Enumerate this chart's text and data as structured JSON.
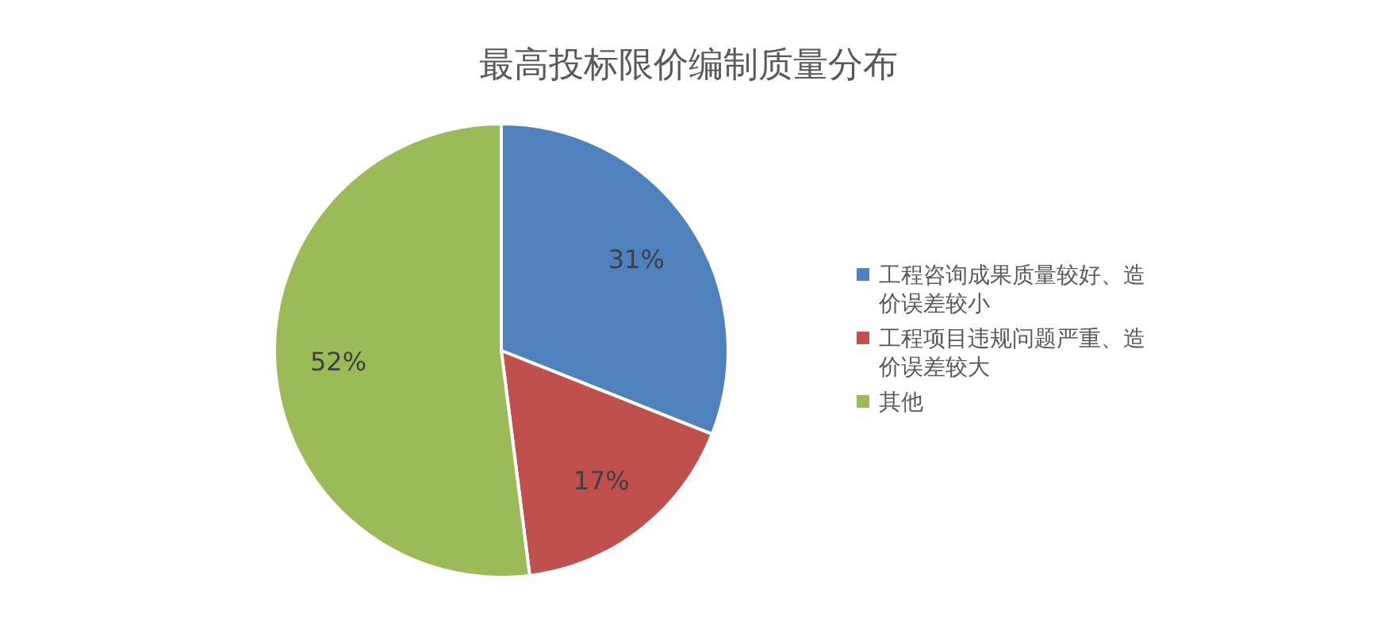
{
  "chart_data": {
    "type": "pie",
    "title": "最高投标限价编制质量分布",
    "categories": [
      "工程咨询成果质量较好、造价误差较小",
      "工程项目违规问题严重、造价误差较大",
      "其他"
    ],
    "values": [
      31,
      17,
      52
    ],
    "colors": [
      "#4f81bd",
      "#c0504d",
      "#9bbb59"
    ],
    "value_labels": [
      "31%",
      "17%",
      "52%"
    ],
    "legend": "right"
  }
}
